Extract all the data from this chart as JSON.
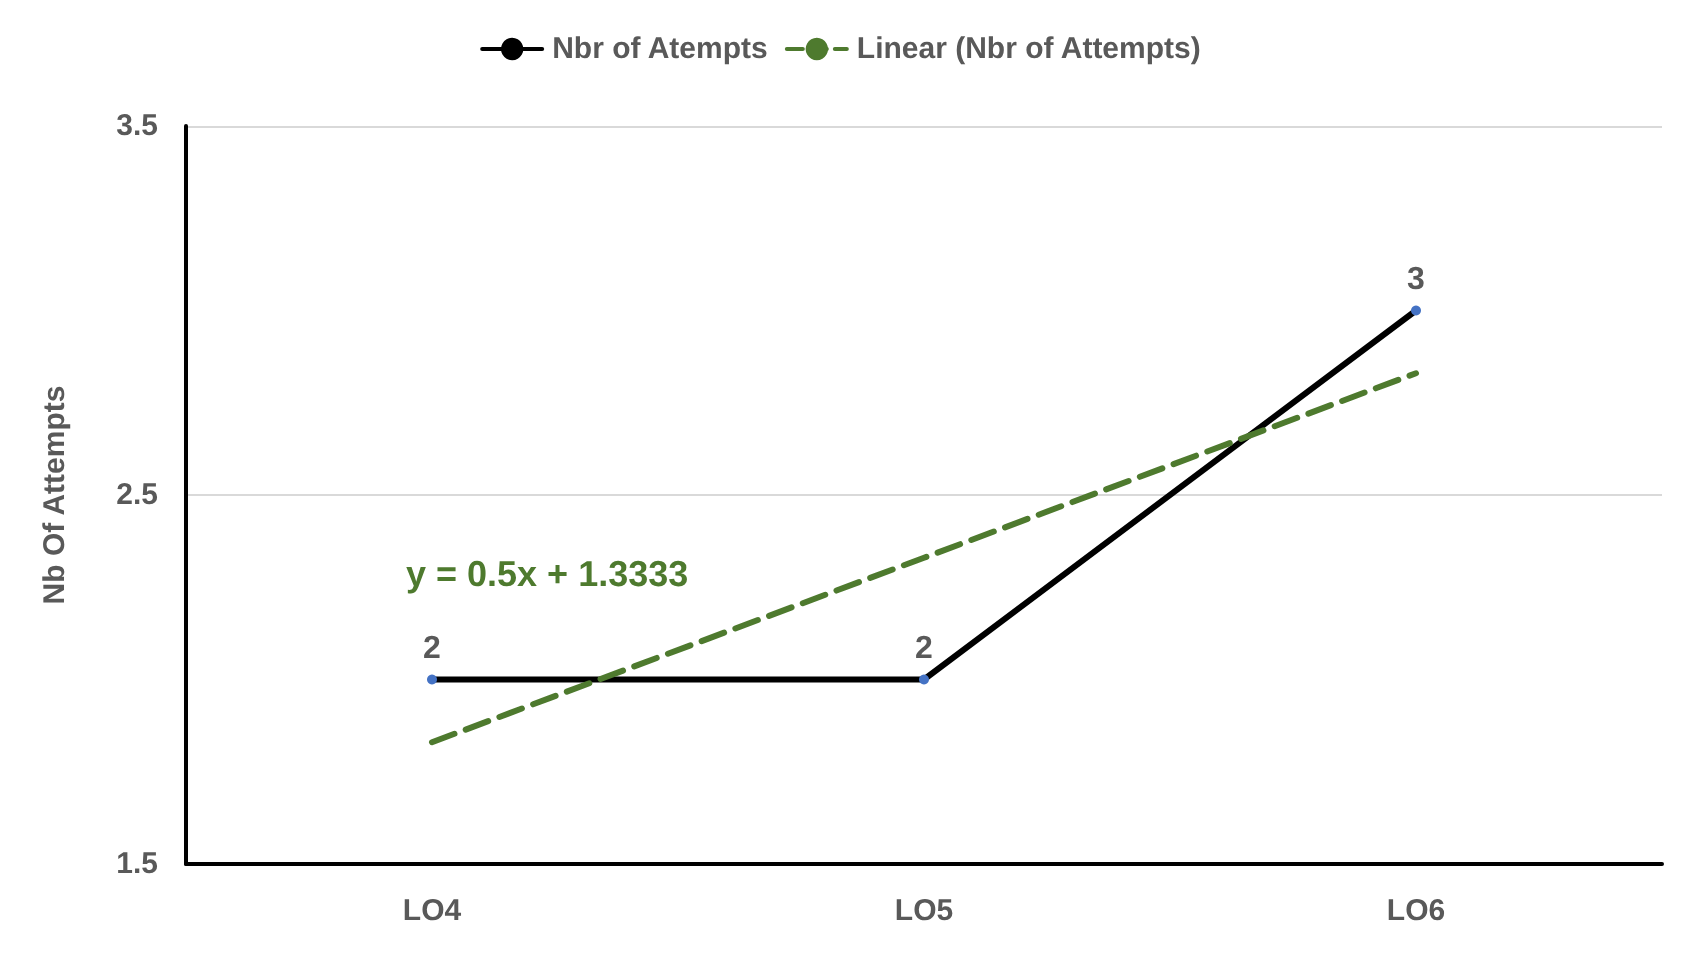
{
  "chart_data": {
    "type": "line",
    "ylabel": "Nb Of Attempts",
    "categories": [
      "LO4",
      "LO5",
      "LO6"
    ],
    "series": [
      {
        "name": "Nbr of Atempts",
        "color": "#000000",
        "values": [
          2,
          2,
          3
        ],
        "marker": "circle",
        "line_style": "solid",
        "data_labels": true
      },
      {
        "name": "Linear (Nbr of Attempts)",
        "color": "#4e7a2e",
        "values": [
          1.83,
          2.33,
          2.83
        ],
        "marker": "none",
        "line_style": "dashed"
      }
    ],
    "ylim": [
      1.5,
      3.5
    ],
    "yticks": [
      1.5,
      2.5,
      3.5
    ],
    "grid": "y",
    "legend": "top",
    "annotations": [
      "y = 0.5x + 1.3333"
    ]
  }
}
